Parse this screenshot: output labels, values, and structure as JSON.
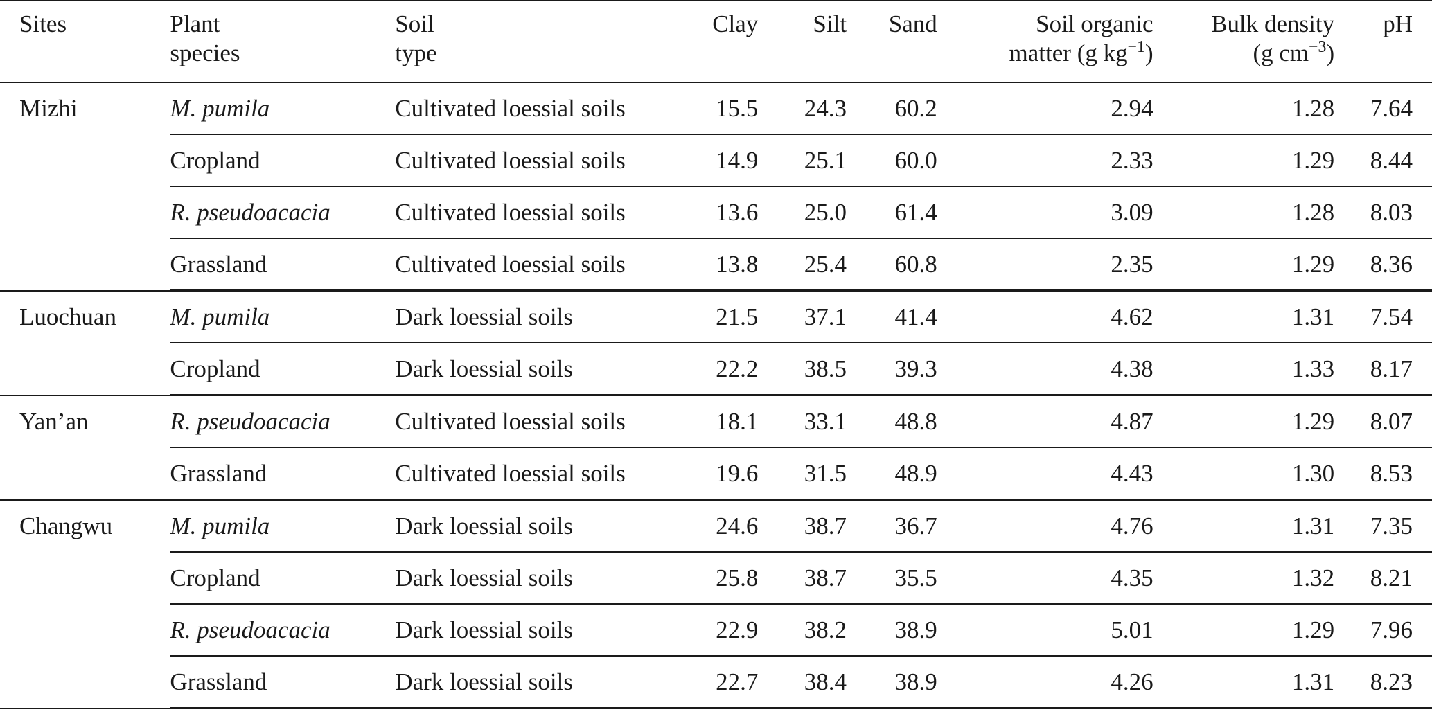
{
  "headers": {
    "sites": "Sites",
    "species_1": "Plant",
    "species_2": "species",
    "soil_1": "Soil",
    "soil_2": "type",
    "clay": "Clay",
    "silt": "Silt",
    "sand": "Sand",
    "som_1": "Soil organic",
    "som_2": "matter (g kg",
    "som_sup": "−1",
    "som_end": ")",
    "bd_1": "Bulk density",
    "bd_2": "(g cm",
    "bd_sup": "−3",
    "bd_end": ")",
    "ph": "pH"
  },
  "groups": [
    {
      "site": "Mizhi",
      "rows": [
        {
          "species": "M. pumila",
          "italic": true,
          "soil": "Cultivated loessial soils",
          "clay": "15.5",
          "silt": "24.3",
          "sand": "60.2",
          "som": "2.94",
          "bd": "1.28",
          "ph": "7.64"
        },
        {
          "species": "Cropland",
          "italic": false,
          "soil": "Cultivated loessial soils",
          "clay": "14.9",
          "silt": "25.1",
          "sand": "60.0",
          "som": "2.33",
          "bd": "1.29",
          "ph": "8.44"
        },
        {
          "species": "R. pseudoacacia",
          "italic": true,
          "soil": "Cultivated loessial soils",
          "clay": "13.6",
          "silt": "25.0",
          "sand": "61.4",
          "som": "3.09",
          "bd": "1.28",
          "ph": "8.03"
        },
        {
          "species": "Grassland",
          "italic": false,
          "soil": "Cultivated loessial soils",
          "clay": "13.8",
          "silt": "25.4",
          "sand": "60.8",
          "som": "2.35",
          "bd": "1.29",
          "ph": "8.36"
        }
      ]
    },
    {
      "site": "Luochuan",
      "rows": [
        {
          "species": "M. pumila",
          "italic": true,
          "soil": "Dark loessial soils",
          "clay": "21.5",
          "silt": "37.1",
          "sand": "41.4",
          "som": "4.62",
          "bd": "1.31",
          "ph": "7.54"
        },
        {
          "species": "Cropland",
          "italic": false,
          "soil": "Dark loessial soils",
          "clay": "22.2",
          "silt": "38.5",
          "sand": "39.3",
          "som": "4.38",
          "bd": "1.33",
          "ph": "8.17"
        }
      ]
    },
    {
      "site": "Yan’an",
      "rows": [
        {
          "species": "R. pseudoacacia",
          "italic": true,
          "soil": "Cultivated loessial soils",
          "clay": "18.1",
          "silt": "33.1",
          "sand": "48.8",
          "som": "4.87",
          "bd": "1.29",
          "ph": "8.07"
        },
        {
          "species": "Grassland",
          "italic": false,
          "soil": "Cultivated loessial soils",
          "clay": "19.6",
          "silt": "31.5",
          "sand": "48.9",
          "som": "4.43",
          "bd": "1.30",
          "ph": "8.53"
        }
      ]
    },
    {
      "site": "Changwu",
      "rows": [
        {
          "species": "M. pumila",
          "italic": true,
          "soil": "Dark loessial soils",
          "clay": "24.6",
          "silt": "38.7",
          "sand": "36.7",
          "som": "4.76",
          "bd": "1.31",
          "ph": "7.35"
        },
        {
          "species": "Cropland",
          "italic": false,
          "soil": "Dark loessial soils",
          "clay": "25.8",
          "silt": "38.7",
          "sand": "35.5",
          "som": "4.35",
          "bd": "1.32",
          "ph": "8.21"
        },
        {
          "species": "R. pseudoacacia",
          "italic": true,
          "soil": "Dark loessial soils",
          "clay": "22.9",
          "silt": "38.2",
          "sand": "38.9",
          "som": "5.01",
          "bd": "1.29",
          "ph": "7.96"
        },
        {
          "species": "Grassland",
          "italic": false,
          "soil": "Dark loessial soils",
          "clay": "22.7",
          "silt": "38.4",
          "sand": "38.9",
          "som": "4.26",
          "bd": "1.31",
          "ph": "8.23"
        }
      ]
    }
  ]
}
